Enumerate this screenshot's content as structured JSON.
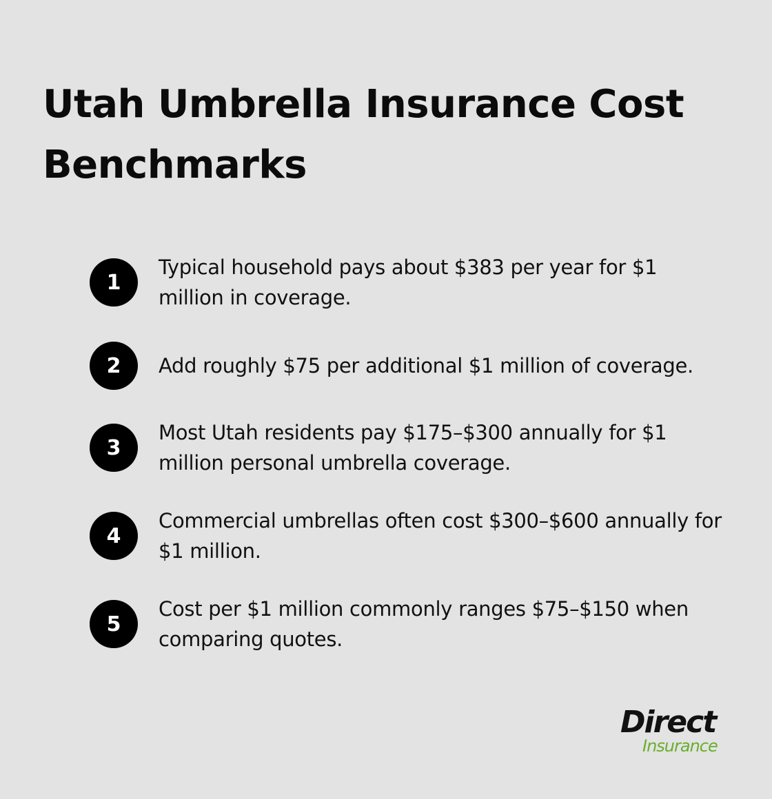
{
  "title": "Utah Umbrella Insurance Cost Benchmarks",
  "items": [
    {
      "number": "1",
      "text": "Typical household pays about $383 per year for $1 million in coverage."
    },
    {
      "number": "2",
      "text": "Add roughly $75 per additional $1 million of coverage."
    },
    {
      "number": "3",
      "text": "Most Utah residents pay $175–$300 annually for $1 million personal umbrella coverage."
    },
    {
      "number": "4",
      "text": "Commercial umbrellas often cost $300–$600 annually for $1 million."
    },
    {
      "number": "5",
      "text": "Cost per $1 million commonly ranges $75–$150 when comparing quotes."
    }
  ],
  "logo": {
    "top": "Direct",
    "bottom": "Insurance"
  }
}
